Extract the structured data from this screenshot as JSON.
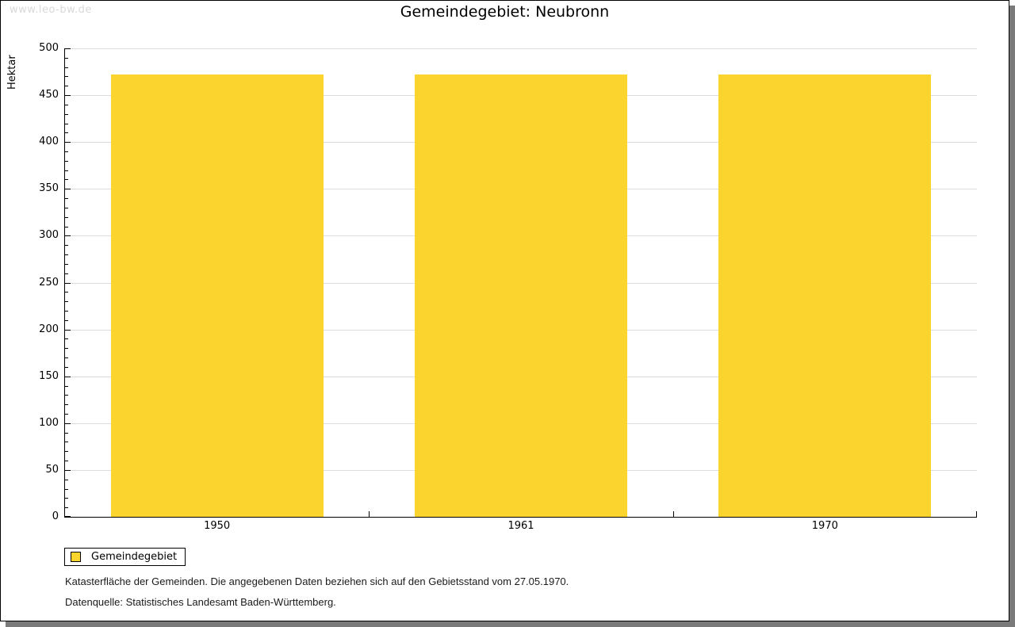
{
  "watermark": "www.leo-bw.de",
  "chart_data": {
    "type": "bar",
    "title": "Gemeindegebiet: Neubronn",
    "categories": [
      "1950",
      "1961",
      "1970"
    ],
    "series": [
      {
        "name": "Gemeindegebiet",
        "values": [
          472,
          472,
          472
        ]
      }
    ],
    "xlabel": "",
    "ylabel": "Hektar",
    "ylim": [
      0,
      500
    ],
    "yticks": [
      0,
      50,
      100,
      150,
      200,
      250,
      300,
      350,
      400,
      450,
      500
    ],
    "minor_tick_step": 10,
    "grid": true,
    "bar_color": "#FCD42E",
    "gridline_color": "#dcdcdc",
    "legend_position": "bottom-left"
  },
  "legend": {
    "items": [
      {
        "label": "Gemeindegebiet",
        "color": "#FCD42E"
      }
    ]
  },
  "footnotes": {
    "line1": "Katasterfläche der Gemeinden. Die angegebenen Daten beziehen sich auf den Gebietsstand vom 27.05.1970.",
    "line2": "Datenquelle: Statistisches Landesamt Baden-Württemberg."
  }
}
